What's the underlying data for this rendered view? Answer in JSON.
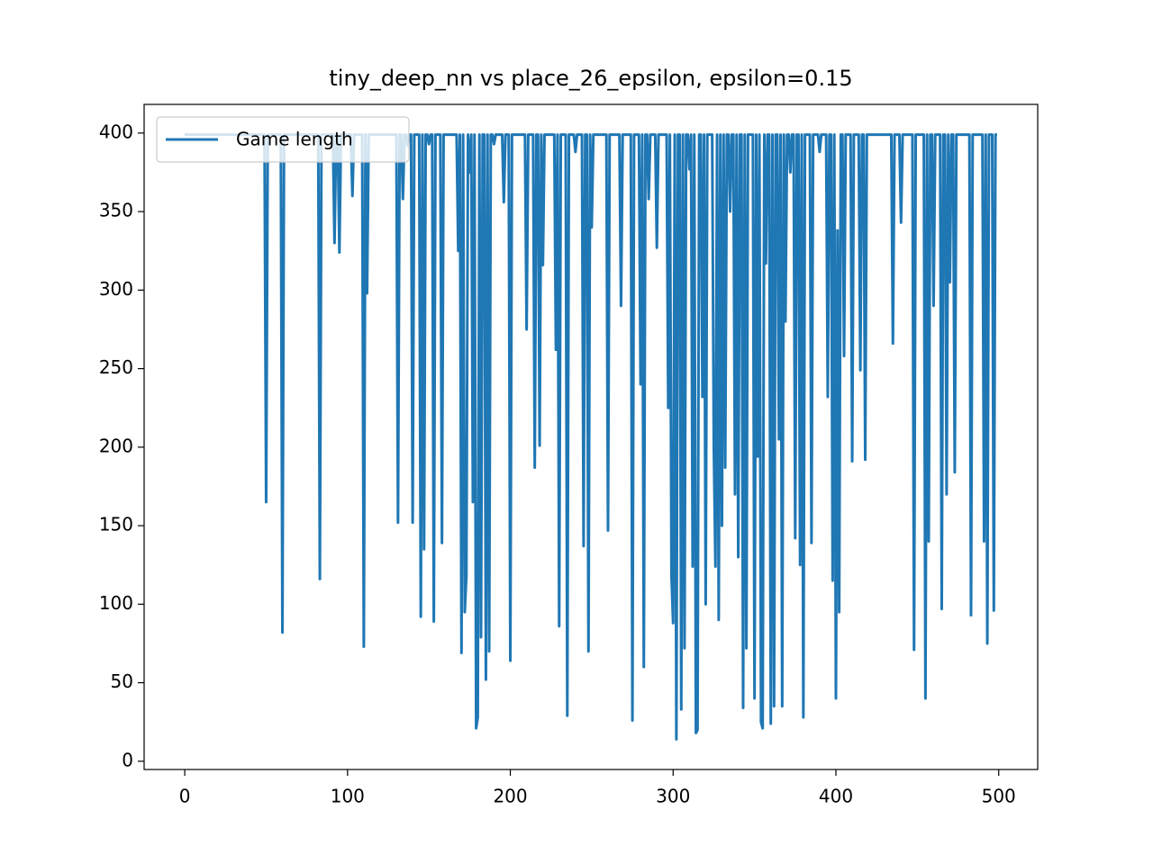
{
  "chart_data": {
    "type": "line",
    "title": "tiny_deep_nn vs place_26_epsilon, epsilon=0.15",
    "legend": "upper left",
    "xlim": [
      -24.95,
      523.95
    ],
    "xticks": [
      0,
      100,
      200,
      300,
      400,
      500
    ],
    "ylim": [
      -5.25,
      418.25
    ],
    "yticks": [
      0,
      50,
      100,
      150,
      200,
      250,
      300,
      350,
      400
    ],
    "x": [
      0,
      1,
      2,
      3,
      4,
      5,
      6,
      7,
      8,
      9,
      10,
      11,
      12,
      13,
      14,
      15,
      16,
      17,
      18,
      19,
      20,
      21,
      22,
      23,
      24,
      25,
      26,
      27,
      28,
      29,
      30,
      31,
      32,
      33,
      34,
      35,
      36,
      37,
      38,
      39,
      40,
      41,
      42,
      43,
      44,
      45,
      46,
      47,
      48,
      49,
      50,
      51,
      52,
      53,
      54,
      55,
      56,
      57,
      58,
      59,
      60,
      61,
      62,
      63,
      64,
      65,
      66,
      67,
      68,
      69,
      70,
      71,
      72,
      73,
      74,
      75,
      76,
      77,
      78,
      79,
      80,
      81,
      82,
      83,
      84,
      85,
      86,
      87,
      88,
      89,
      90,
      91,
      92,
      93,
      94,
      95,
      96,
      97,
      98,
      99,
      100,
      101,
      102,
      103,
      104,
      105,
      106,
      107,
      108,
      109,
      110,
      111,
      112,
      113,
      114,
      115,
      116,
      117,
      118,
      119,
      120,
      121,
      122,
      123,
      124,
      125,
      126,
      127,
      128,
      129,
      130,
      131,
      132,
      133,
      134,
      135,
      136,
      137,
      138,
      139,
      140,
      141,
      142,
      143,
      144,
      145,
      146,
      147,
      148,
      149,
      150,
      151,
      152,
      153,
      154,
      155,
      156,
      157,
      158,
      159,
      160,
      161,
      162,
      163,
      164,
      165,
      166,
      167,
      168,
      169,
      170,
      171,
      172,
      173,
      174,
      175,
      176,
      177,
      178,
      179,
      180,
      181,
      182,
      183,
      184,
      185,
      186,
      187,
      188,
      189,
      190,
      191,
      192,
      193,
      194,
      195,
      196,
      197,
      198,
      199,
      200,
      201,
      202,
      203,
      204,
      205,
      206,
      207,
      208,
      209,
      210,
      211,
      212,
      213,
      214,
      215,
      216,
      217,
      218,
      219,
      220,
      221,
      222,
      223,
      224,
      225,
      226,
      227,
      228,
      229,
      230,
      231,
      232,
      233,
      234,
      235,
      236,
      237,
      238,
      239,
      240,
      241,
      242,
      243,
      244,
      245,
      246,
      247,
      248,
      249,
      250,
      251,
      252,
      253,
      254,
      255,
      256,
      257,
      258,
      259,
      260,
      261,
      262,
      263,
      264,
      265,
      266,
      267,
      268,
      269,
      270,
      271,
      272,
      273,
      274,
      275,
      276,
      277,
      278,
      279,
      280,
      281,
      282,
      283,
      284,
      285,
      286,
      287,
      288,
      289,
      290,
      291,
      292,
      293,
      294,
      295,
      296,
      297,
      298,
      299,
      300,
      301,
      302,
      303,
      304,
      305,
      306,
      307,
      308,
      309,
      310,
      311,
      312,
      313,
      314,
      315,
      316,
      317,
      318,
      319,
      320,
      321,
      322,
      323,
      324,
      325,
      326,
      327,
      328,
      329,
      330,
      331,
      332,
      333,
      334,
      335,
      336,
      337,
      338,
      339,
      340,
      341,
      342,
      343,
      344,
      345,
      346,
      347,
      348,
      349,
      350,
      351,
      352,
      353,
      354,
      355,
      356,
      357,
      358,
      359,
      360,
      361,
      362,
      363,
      364,
      365,
      366,
      367,
      368,
      369,
      370,
      371,
      372,
      373,
      374,
      375,
      376,
      377,
      378,
      379,
      380,
      381,
      382,
      383,
      384,
      385,
      386,
      387,
      388,
      389,
      390,
      391,
      392,
      393,
      394,
      395,
      396,
      397,
      398,
      399,
      400,
      401,
      402,
      403,
      404,
      405,
      406,
      407,
      408,
      409,
      410,
      411,
      412,
      413,
      414,
      415,
      416,
      417,
      418,
      419,
      420,
      421,
      422,
      423,
      424,
      425,
      426,
      427,
      428,
      429,
      430,
      431,
      432,
      433,
      434,
      435,
      436,
      437,
      438,
      439,
      440,
      441,
      442,
      443,
      444,
      445,
      446,
      447,
      448,
      449,
      450,
      451,
      452,
      453,
      454,
      455,
      456,
      457,
      458,
      459,
      460,
      461,
      462,
      463,
      464,
      465,
      466,
      467,
      468,
      469,
      470,
      471,
      472,
      473,
      474,
      475,
      476,
      477,
      478,
      479,
      480,
      481,
      482,
      483,
      484,
      485,
      486,
      487,
      488,
      489,
      490,
      491,
      492,
      493,
      494,
      495,
      496,
      497,
      498,
      499
    ],
    "series": [
      {
        "name": "Game length",
        "color": "#1f77b4",
        "values": [
          399,
          399,
          399,
          399,
          399,
          399,
          399,
          399,
          399,
          399,
          399,
          399,
          399,
          399,
          399,
          399,
          399,
          399,
          399,
          399,
          399,
          399,
          399,
          399,
          399,
          399,
          399,
          399,
          399,
          399,
          399,
          399,
          399,
          399,
          399,
          399,
          399,
          399,
          399,
          399,
          399,
          399,
          399,
          399,
          399,
          399,
          399,
          399,
          399,
          399,
          165,
          399,
          399,
          399,
          399,
          399,
          399,
          399,
          399,
          399,
          82,
          399,
          399,
          399,
          399,
          399,
          399,
          399,
          399,
          399,
          399,
          399,
          399,
          399,
          399,
          399,
          399,
          399,
          399,
          399,
          399,
          399,
          399,
          116,
          399,
          399,
          399,
          399,
          399,
          399,
          399,
          399,
          330,
          399,
          399,
          324,
          399,
          399,
          399,
          399,
          399,
          399,
          399,
          360,
          399,
          399,
          399,
          399,
          399,
          399,
          73,
          399,
          298,
          399,
          399,
          399,
          399,
          399,
          399,
          399,
          399,
          399,
          399,
          399,
          399,
          399,
          399,
          399,
          399,
          399,
          399,
          152,
          399,
          399,
          358,
          399,
          399,
          392,
          399,
          399,
          152,
          399,
          399,
          399,
          399,
          92,
          399,
          135,
          399,
          399,
          393,
          399,
          399,
          89,
          399,
          399,
          399,
          399,
          139,
          399,
          399,
          399,
          399,
          399,
          399,
          399,
          399,
          399,
          325,
          399,
          69,
          399,
          95,
          118,
          399,
          375,
          399,
          165,
          399,
          21,
          28,
          399,
          79,
          399,
          399,
          52,
          399,
          70,
          399,
          399,
          393,
          399,
          399,
          399,
          399,
          399,
          356,
          399,
          399,
          399,
          64,
          399,
          399,
          399,
          399,
          399,
          399,
          399,
          399,
          399,
          275,
          399,
          399,
          399,
          399,
          187,
          399,
          399,
          201,
          399,
          316,
          399,
          399,
          399,
          399,
          399,
          399,
          399,
          262,
          399,
          86,
          399,
          399,
          399,
          399,
          29,
          399,
          399,
          399,
          399,
          388,
          399,
          399,
          399,
          399,
          137,
          399,
          399,
          70,
          399,
          340,
          399,
          399,
          399,
          399,
          399,
          399,
          399,
          399,
          399,
          147,
          399,
          399,
          399,
          399,
          399,
          399,
          399,
          290,
          399,
          399,
          399,
          399,
          399,
          399,
          26,
          399,
          399,
          399,
          399,
          240,
          399,
          60,
          399,
          399,
          358,
          399,
          399,
          399,
          399,
          327,
          399,
          399,
          399,
          399,
          399,
          399,
          225,
          399,
          118,
          88,
          399,
          14,
          399,
          399,
          33,
          399,
          72,
          399,
          399,
          377,
          399,
          124,
          399,
          18,
          20,
          399,
          399,
          232,
          399,
          100,
          399,
          399,
          399,
          399,
          200,
          124,
          399,
          90,
          399,
          150,
          399,
          187,
          399,
          399,
          350,
          399,
          399,
          170,
          399,
          130,
          399,
          399,
          34,
          399,
          72,
          399,
          399,
          399,
          399,
          40,
          399,
          194,
          399,
          25,
          21,
          399,
          317,
          399,
          399,
          24,
          399,
          35,
          399,
          399,
          205,
          399,
          35,
          399,
          280,
          399,
          399,
          375,
          399,
          399,
          142,
          399,
          399,
          125,
          399,
          28,
          399,
          399,
          399,
          399,
          139,
          399,
          399,
          399,
          399,
          388,
          399,
          399,
          399,
          399,
          232,
          399,
          399,
          115,
          399,
          40,
          338,
          95,
          399,
          399,
          258,
          399,
          399,
          399,
          399,
          191,
          399,
          399,
          399,
          399,
          249,
          399,
          399,
          192,
          399,
          399,
          399,
          399,
          399,
          399,
          399,
          399,
          399,
          399,
          399,
          399,
          399,
          399,
          399,
          399,
          266,
          399,
          399,
          399,
          399,
          343,
          399,
          399,
          399,
          399,
          399,
          399,
          399,
          71,
          399,
          399,
          399,
          399,
          399,
          399,
          40,
          399,
          140,
          399,
          399,
          290,
          399,
          399,
          399,
          399,
          97,
          399,
          399,
          170,
          399,
          305,
          399,
          399,
          184,
          399,
          399,
          399,
          399,
          399,
          399,
          399,
          399,
          399,
          93,
          399,
          399,
          399,
          399,
          399,
          399,
          399,
          140,
          399,
          75,
          399,
          399,
          399,
          96,
          399,
          399
        ]
      }
    ]
  }
}
